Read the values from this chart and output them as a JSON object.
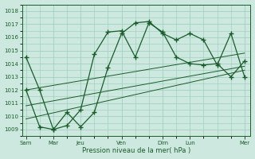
{
  "bg_color": "#cce8df",
  "grid_color": "#99ccbb",
  "line_color": "#1a5c2a",
  "title": "Pression niveau de la mer( hPa )",
  "ylim": [
    1008.5,
    1018.5
  ],
  "yticks": [
    1009,
    1010,
    1011,
    1012,
    1013,
    1014,
    1015,
    1016,
    1017,
    1018
  ],
  "day_labels": [
    "Sam",
    "Mar",
    "Jeu",
    "Ven",
    "Dim",
    "Lun",
    "Mer"
  ],
  "day_positions": [
    0,
    14,
    28,
    49,
    70,
    84,
    112
  ],
  "xlim": [
    -2,
    115
  ],
  "series1_x": [
    0,
    7,
    14,
    21,
    28,
    35,
    42,
    49,
    56,
    63,
    70,
    77,
    84,
    91,
    98,
    105,
    112
  ],
  "series1_y": [
    1014.5,
    1012.0,
    1009.0,
    1010.3,
    1009.2,
    1010.3,
    1013.7,
    1016.3,
    1017.1,
    1017.2,
    1016.3,
    1015.8,
    1016.3,
    1015.8,
    1013.9,
    1016.3,
    1013.0
  ],
  "series2_x": [
    0,
    7,
    14,
    21,
    28,
    35,
    42,
    49,
    56,
    63,
    70,
    77,
    84,
    91,
    98,
    105,
    112
  ],
  "series2_y": [
    1012.0,
    1009.2,
    1009.0,
    1009.3,
    1010.5,
    1014.7,
    1016.4,
    1016.5,
    1014.5,
    1017.1,
    1016.4,
    1014.5,
    1014.0,
    1013.9,
    1014.0,
    1013.0,
    1014.2
  ],
  "trend1_x": [
    0,
    112
  ],
  "trend1_y": [
    1012.0,
    1014.8
  ],
  "trend2_x": [
    0,
    112
  ],
  "trend2_y": [
    1010.8,
    1013.8
  ],
  "trend3_x": [
    0,
    112
  ],
  "trend3_y": [
    1009.8,
    1013.5
  ]
}
